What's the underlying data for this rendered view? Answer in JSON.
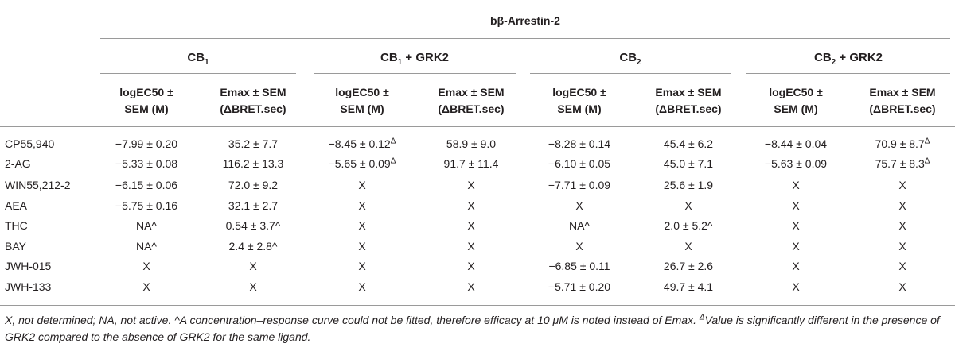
{
  "table": {
    "main_header": "bβ-Arrestin-2",
    "groups": [
      {
        "base": "CB",
        "sub": "1",
        "suffix": ""
      },
      {
        "base": "CB",
        "sub": "1",
        "suffix": " + GRK2"
      },
      {
        "base": "CB",
        "sub": "2",
        "suffix": ""
      },
      {
        "base": "CB",
        "sub": "2",
        "suffix": " + GRK2"
      }
    ],
    "col_headers": [
      {
        "line1": "logEC50 ±",
        "line2": "SEM (M)"
      },
      {
        "line1": "Emax ± SEM",
        "line2": "(ΔBRET.sec)"
      },
      {
        "line1": "logEC50 ±",
        "line2": "SEM (M)"
      },
      {
        "line1": "Emax ± SEM",
        "line2": "(ΔBRET.sec)"
      },
      {
        "line1": "logEC50 ±",
        "line2": "SEM (M)"
      },
      {
        "line1": "Emax ± SEM",
        "line2": "(ΔBRET.sec)"
      },
      {
        "line1": "logEC50 ±",
        "line2": "SEM (M)"
      },
      {
        "line1": "Emax ± SEM",
        "line2": "(ΔBRET.sec)"
      }
    ],
    "rows": [
      {
        "name": "CP55,940",
        "cells": [
          {
            "v": "−7.99 ± 0.20",
            "sup": ""
          },
          {
            "v": "35.2 ± 7.7",
            "sup": ""
          },
          {
            "v": "−8.45 ± 0.12",
            "sup": "Δ"
          },
          {
            "v": "58.9 ± 9.0",
            "sup": ""
          },
          {
            "v": "−8.28 ± 0.14",
            "sup": ""
          },
          {
            "v": "45.4 ± 6.2",
            "sup": ""
          },
          {
            "v": "−8.44 ± 0.04",
            "sup": ""
          },
          {
            "v": "70.9 ± 8.7",
            "sup": "Δ"
          }
        ]
      },
      {
        "name": "2-AG",
        "cells": [
          {
            "v": "−5.33 ± 0.08",
            "sup": ""
          },
          {
            "v": "116.2 ± 13.3",
            "sup": ""
          },
          {
            "v": "−5.65 ± 0.09",
            "sup": "Δ"
          },
          {
            "v": "91.7 ± 11.4",
            "sup": ""
          },
          {
            "v": "−6.10 ± 0.05",
            "sup": ""
          },
          {
            "v": "45.0 ± 7.1",
            "sup": ""
          },
          {
            "v": "−5.63 ± 0.09",
            "sup": ""
          },
          {
            "v": "75.7 ± 8.3",
            "sup": "Δ"
          }
        ]
      },
      {
        "name": "WIN55,212-2",
        "cells": [
          {
            "v": "−6.15 ± 0.06",
            "sup": ""
          },
          {
            "v": "72.0 ± 9.2",
            "sup": ""
          },
          {
            "v": "X",
            "sup": ""
          },
          {
            "v": "X",
            "sup": ""
          },
          {
            "v": "−7.71 ± 0.09",
            "sup": ""
          },
          {
            "v": "25.6 ± 1.9",
            "sup": ""
          },
          {
            "v": "X",
            "sup": ""
          },
          {
            "v": "X",
            "sup": ""
          }
        ]
      },
      {
        "name": "AEA",
        "cells": [
          {
            "v": "−5.75 ± 0.16",
            "sup": ""
          },
          {
            "v": "32.1 ± 2.7",
            "sup": ""
          },
          {
            "v": "X",
            "sup": ""
          },
          {
            "v": "X",
            "sup": ""
          },
          {
            "v": "X",
            "sup": ""
          },
          {
            "v": "X",
            "sup": ""
          },
          {
            "v": "X",
            "sup": ""
          },
          {
            "v": "X",
            "sup": ""
          }
        ]
      },
      {
        "name": "THC",
        "cells": [
          {
            "v": "NA^",
            "sup": ""
          },
          {
            "v": "0.54 ± 3.7^",
            "sup": ""
          },
          {
            "v": "X",
            "sup": ""
          },
          {
            "v": "X",
            "sup": ""
          },
          {
            "v": "NA^",
            "sup": ""
          },
          {
            "v": "2.0 ± 5.2^",
            "sup": ""
          },
          {
            "v": "X",
            "sup": ""
          },
          {
            "v": "X",
            "sup": ""
          }
        ]
      },
      {
        "name": "BAY",
        "cells": [
          {
            "v": "NA^",
            "sup": ""
          },
          {
            "v": "2.4 ± 2.8^",
            "sup": ""
          },
          {
            "v": "X",
            "sup": ""
          },
          {
            "v": "X",
            "sup": ""
          },
          {
            "v": "X",
            "sup": ""
          },
          {
            "v": "X",
            "sup": ""
          },
          {
            "v": "X",
            "sup": ""
          },
          {
            "v": "X",
            "sup": ""
          }
        ]
      },
      {
        "name": "JWH-015",
        "cells": [
          {
            "v": "X",
            "sup": ""
          },
          {
            "v": "X",
            "sup": ""
          },
          {
            "v": "X",
            "sup": ""
          },
          {
            "v": "X",
            "sup": ""
          },
          {
            "v": "−6.85 ± 0.11",
            "sup": ""
          },
          {
            "v": "26.7 ± 2.6",
            "sup": ""
          },
          {
            "v": "X",
            "sup": ""
          },
          {
            "v": "X",
            "sup": ""
          }
        ]
      },
      {
        "name": "JWH-133",
        "cells": [
          {
            "v": "X",
            "sup": ""
          },
          {
            "v": "X",
            "sup": ""
          },
          {
            "v": "X",
            "sup": ""
          },
          {
            "v": "X",
            "sup": ""
          },
          {
            "v": "−5.71 ± 0.20",
            "sup": ""
          },
          {
            "v": "49.7 ± 4.1",
            "sup": ""
          },
          {
            "v": "X",
            "sup": ""
          },
          {
            "v": "X",
            "sup": ""
          }
        ]
      }
    ]
  },
  "footnote": {
    "part1": "X, not determined; NA, not active. ^A concentration–response curve could not be fitted, therefore efficacy at 10 μM is noted instead of Emax. ",
    "delta": "Δ",
    "part2": "Value is significantly different in the presence of GRK2 compared to the absence of GRK2 for the same ligand."
  }
}
